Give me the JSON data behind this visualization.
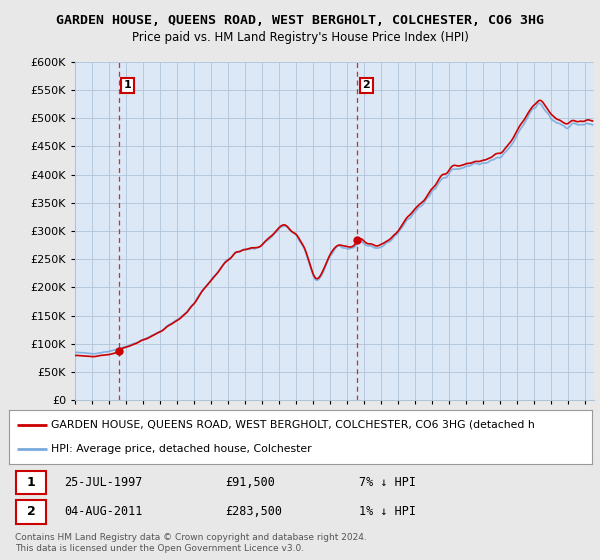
{
  "title": "GARDEN HOUSE, QUEENS ROAD, WEST BERGHOLT, COLCHESTER, CO6 3HG",
  "subtitle": "Price paid vs. HM Land Registry's House Price Index (HPI)",
  "ylim": [
    0,
    600000
  ],
  "yticks": [
    0,
    50000,
    100000,
    150000,
    200000,
    250000,
    300000,
    350000,
    400000,
    450000,
    500000,
    550000,
    600000
  ],
  "bg_color": "#e8e8e8",
  "plot_bg": "#dce8f5",
  "grid_color": "#b0c4d8",
  "hpi_color": "#7aaadd",
  "price_color": "#cc0000",
  "sale1_date": "25-JUL-1997",
  "sale1_price": 91500,
  "sale1_hpi_pct": "7% ↓ HPI",
  "sale2_date": "04-AUG-2011",
  "sale2_price": 283500,
  "sale2_hpi_pct": "1% ↓ HPI",
  "legend_label1": "GARDEN HOUSE, QUEENS ROAD, WEST BERGHOLT, COLCHESTER, CO6 3HG (detached h",
  "legend_label2": "HPI: Average price, detached house, Colchester",
  "footer": "Contains HM Land Registry data © Crown copyright and database right 2024.\nThis data is licensed under the Open Government Licence v3.0.",
  "vline1_x": 1997.57,
  "vline2_x": 2011.6,
  "xmin": 1995.0,
  "xmax": 2025.5
}
